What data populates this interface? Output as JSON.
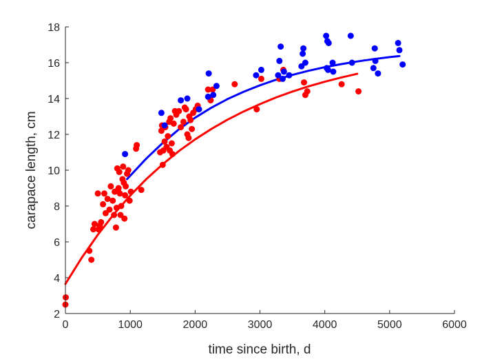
{
  "chart_data": {
    "type": "scatter",
    "title": "",
    "xlabel": "time since birth, d",
    "ylabel": "carapace length, cm",
    "xlim": [
      0,
      6000
    ],
    "ylim": [
      2,
      18
    ],
    "xticks": [
      0,
      1000,
      2000,
      3000,
      4000,
      5000,
      6000
    ],
    "xtick_labels": [
      "0",
      "1000",
      "2000",
      "3000",
      "4000",
      "5000",
      "6000"
    ],
    "yticks": [
      2,
      4,
      6,
      8,
      10,
      12,
      14,
      16,
      18
    ],
    "ytick_labels": [
      "2",
      "4",
      "6",
      "8",
      "10",
      "12",
      "14",
      "16",
      "18"
    ],
    "grid": false,
    "legend": "none",
    "series": [
      {
        "color": "#ff0000",
        "points": [
          [
            0,
            2.5
          ],
          [
            5,
            2.9
          ],
          [
            370,
            5.5
          ],
          [
            400,
            5.0
          ],
          [
            430,
            6.7
          ],
          [
            450,
            7.0
          ],
          [
            500,
            8.7
          ],
          [
            510,
            6.7
          ],
          [
            530,
            6.9
          ],
          [
            550,
            7.1
          ],
          [
            580,
            8.1
          ],
          [
            600,
            8.7
          ],
          [
            620,
            7.6
          ],
          [
            650,
            8.4
          ],
          [
            680,
            7.8
          ],
          [
            700,
            9.1
          ],
          [
            730,
            8.3
          ],
          [
            750,
            7.5
          ],
          [
            760,
            8.8
          ],
          [
            780,
            6.8
          ],
          [
            790,
            7.9
          ],
          [
            800,
            10.1
          ],
          [
            810,
            8.9
          ],
          [
            820,
            9.0
          ],
          [
            830,
            9.9
          ],
          [
            840,
            8.7
          ],
          [
            850,
            7.5
          ],
          [
            860,
            8.0
          ],
          [
            880,
            9.5
          ],
          [
            890,
            10.2
          ],
          [
            900,
            9.3
          ],
          [
            910,
            7.3
          ],
          [
            920,
            8.6
          ],
          [
            930,
            9.1
          ],
          [
            950,
            9.8
          ],
          [
            970,
            10.0
          ],
          [
            990,
            8.3
          ],
          [
            1010,
            8.8
          ],
          [
            1090,
            11.2
          ],
          [
            1100,
            11.4
          ],
          [
            1170,
            8.9
          ],
          [
            1460,
            11.0
          ],
          [
            1480,
            12.2
          ],
          [
            1490,
            12.5
          ],
          [
            1500,
            10.3
          ],
          [
            1510,
            11.1
          ],
          [
            1530,
            11.6
          ],
          [
            1540,
            12.4
          ],
          [
            1560,
            11.3
          ],
          [
            1580,
            11.9
          ],
          [
            1600,
            12.7
          ],
          [
            1610,
            11.1
          ],
          [
            1620,
            12.9
          ],
          [
            1640,
            11.5
          ],
          [
            1650,
            10.9
          ],
          [
            1670,
            12.6
          ],
          [
            1690,
            13.3
          ],
          [
            1710,
            13.1
          ],
          [
            1750,
            13.3
          ],
          [
            1780,
            12.4
          ],
          [
            1820,
            12.7
          ],
          [
            1840,
            13.5
          ],
          [
            1860,
            13.4
          ],
          [
            1880,
            12.0
          ],
          [
            1900,
            11.8
          ],
          [
            1910,
            13.0
          ],
          [
            1930,
            12.8
          ],
          [
            1950,
            12.3
          ],
          [
            1970,
            13.2
          ],
          [
            2010,
            13.4
          ],
          [
            2040,
            13.6
          ],
          [
            2200,
            14.5
          ],
          [
            2240,
            13.9
          ],
          [
            2270,
            14.5
          ],
          [
            2610,
            14.8
          ],
          [
            2950,
            13.4
          ],
          [
            3020,
            15.1
          ],
          [
            3300,
            15.1
          ],
          [
            3360,
            15.6
          ],
          [
            3680,
            14.9
          ],
          [
            3700,
            14.2
          ],
          [
            3730,
            14.4
          ],
          [
            4260,
            14.8
          ],
          [
            4520,
            14.4
          ]
        ],
        "fit_curve": [
          [
            0,
            3.65
          ],
          [
            250,
            5.1
          ],
          [
            500,
            6.4
          ],
          [
            750,
            7.56
          ],
          [
            1000,
            8.59
          ],
          [
            1250,
            9.51
          ],
          [
            1500,
            10.33
          ],
          [
            1750,
            11.07
          ],
          [
            2000,
            11.72
          ],
          [
            2250,
            12.3
          ],
          [
            2500,
            12.82
          ],
          [
            2750,
            13.28
          ],
          [
            3000,
            13.69
          ],
          [
            3250,
            14.06
          ],
          [
            3500,
            14.39
          ],
          [
            3750,
            14.68
          ],
          [
            4000,
            14.94
          ],
          [
            4250,
            15.17
          ],
          [
            4500,
            15.38
          ]
        ]
      },
      {
        "color": "#0000ff",
        "points": [
          [
            920,
            10.9
          ],
          [
            1480,
            13.2
          ],
          [
            1530,
            12.5
          ],
          [
            1780,
            13.9
          ],
          [
            1880,
            14.0
          ],
          [
            2060,
            13.4
          ],
          [
            2200,
            14.1
          ],
          [
            2210,
            15.4
          ],
          [
            2280,
            14.2
          ],
          [
            2330,
            14.7
          ],
          [
            2940,
            15.3
          ],
          [
            3020,
            15.6
          ],
          [
            3280,
            15.3
          ],
          [
            3300,
            16.1
          ],
          [
            3320,
            16.9
          ],
          [
            3350,
            15.1
          ],
          [
            3370,
            15.5
          ],
          [
            3450,
            15.3
          ],
          [
            3640,
            15.8
          ],
          [
            3660,
            16.5
          ],
          [
            3670,
            16.8
          ],
          [
            3700,
            16.0
          ],
          [
            4020,
            17.5
          ],
          [
            4030,
            15.7
          ],
          [
            4040,
            17.2
          ],
          [
            4050,
            15.6
          ],
          [
            4060,
            17.1
          ],
          [
            4120,
            16.0
          ],
          [
            4130,
            15.5
          ],
          [
            4400,
            17.5
          ],
          [
            4420,
            16.0
          ],
          [
            4750,
            15.7
          ],
          [
            4770,
            16.8
          ],
          [
            4780,
            16.1
          ],
          [
            4820,
            15.4
          ],
          [
            5130,
            17.1
          ],
          [
            5150,
            16.7
          ],
          [
            5200,
            15.9
          ]
        ],
        "fit_curve": [
          [
            950,
            9.5
          ],
          [
            1250,
            10.66
          ],
          [
            1500,
            11.52
          ],
          [
            1750,
            12.28
          ],
          [
            2000,
            12.93
          ],
          [
            2250,
            13.49
          ],
          [
            2500,
            13.97
          ],
          [
            2750,
            14.38
          ],
          [
            3000,
            14.74
          ],
          [
            3250,
            15.05
          ],
          [
            3500,
            15.32
          ],
          [
            3750,
            15.55
          ],
          [
            4000,
            15.75
          ],
          [
            4250,
            15.92
          ],
          [
            4500,
            16.07
          ],
          [
            4750,
            16.2
          ],
          [
            5000,
            16.31
          ],
          [
            5150,
            16.37
          ]
        ]
      }
    ]
  }
}
